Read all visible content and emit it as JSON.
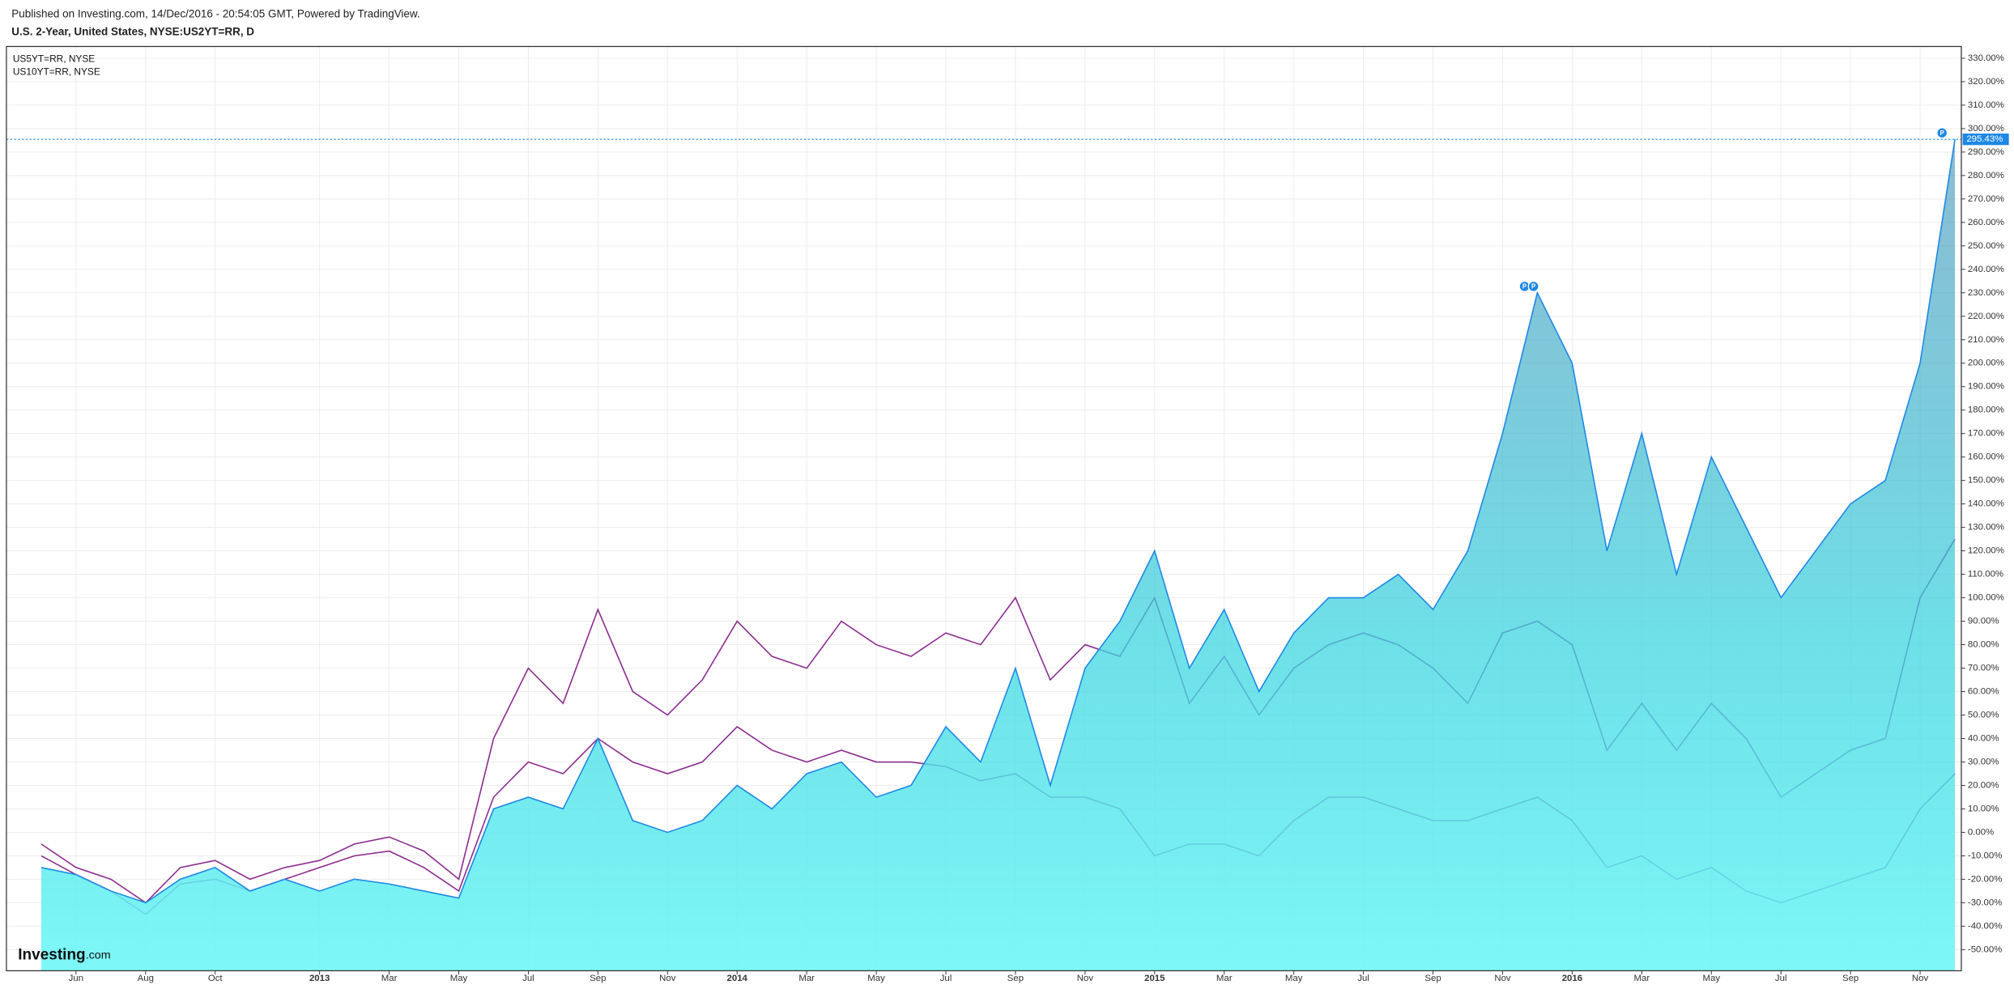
{
  "header": "Published on Investing.com, 14/Dec/2016 - 20:54:05 GMT, Powered by TradingView.",
  "chart_data": {
    "type": "area-compare",
    "title": "U.S. 2-Year, United States, NYSE:US2YT=RR, D",
    "x": [
      "2012-05",
      "2012-06",
      "2012-07",
      "2012-08",
      "2012-09",
      "2012-10",
      "2012-11",
      "2012-12",
      "2013-01",
      "2013-02",
      "2013-03",
      "2013-04",
      "2013-05",
      "2013-06",
      "2013-07",
      "2013-08",
      "2013-09",
      "2013-10",
      "2013-11",
      "2013-12",
      "2014-01",
      "2014-02",
      "2014-03",
      "2014-04",
      "2014-05",
      "2014-06",
      "2014-07",
      "2014-08",
      "2014-09",
      "2014-10",
      "2014-11",
      "2014-12",
      "2015-01",
      "2015-02",
      "2015-03",
      "2015-04",
      "2015-05",
      "2015-06",
      "2015-07",
      "2015-08",
      "2015-09",
      "2015-10",
      "2015-11",
      "2015-12",
      "2016-01",
      "2016-02",
      "2016-03",
      "2016-04",
      "2016-05",
      "2016-06",
      "2016-07",
      "2016-08",
      "2016-09",
      "2016-10",
      "2016-11",
      "2016-12"
    ],
    "series": [
      {
        "name": "U.S. 2-Year",
        "color": "#1e88e5",
        "values": [
          -15,
          -18,
          -25,
          -30,
          -20,
          -15,
          -25,
          -20,
          -25,
          -20,
          -22,
          -25,
          -28,
          10,
          15,
          10,
          40,
          5,
          0,
          5,
          20,
          10,
          25,
          30,
          15,
          20,
          45,
          30,
          70,
          20,
          70,
          90,
          120,
          70,
          95,
          60,
          85,
          100,
          100,
          110,
          95,
          120,
          170,
          230,
          200,
          120,
          170,
          110,
          160,
          130,
          100,
          120,
          140,
          150,
          200,
          295.43
        ]
      },
      {
        "name": "US5YT=RR, NYSE",
        "color": "#8b2c8f",
        "values": [
          -5,
          -15,
          -20,
          -30,
          -15,
          -12,
          -20,
          -15,
          -12,
          -5,
          -2,
          -8,
          -20,
          40,
          70,
          55,
          95,
          60,
          50,
          65,
          90,
          75,
          70,
          90,
          80,
          75,
          85,
          80,
          100,
          65,
          80,
          75,
          100,
          55,
          75,
          50,
          70,
          80,
          85,
          80,
          70,
          55,
          85,
          90,
          80,
          35,
          55,
          35,
          55,
          40,
          15,
          25,
          35,
          40,
          100,
          125
        ]
      },
      {
        "name": "US10YT=RR, NYSE",
        "color": "#8b2c8f",
        "values": [
          -10,
          -18,
          -25,
          -35,
          -22,
          -20,
          -25,
          -20,
          -15,
          -10,
          -8,
          -15,
          -25,
          15,
          30,
          25,
          40,
          30,
          25,
          30,
          45,
          35,
          30,
          35,
          30,
          30,
          28,
          22,
          25,
          15,
          15,
          10,
          -10,
          -5,
          -5,
          -10,
          5,
          15,
          15,
          10,
          5,
          5,
          10,
          15,
          5,
          -15,
          -10,
          -20,
          -15,
          -25,
          -30,
          -25,
          -20,
          -15,
          10,
          25
        ]
      }
    ],
    "price_label": "295.43%",
    "events": [
      {
        "x": "2015-12",
        "label": "P"
      },
      {
        "x": "2015-12",
        "label": "P"
      },
      {
        "x": "2016-12",
        "label": "P"
      }
    ],
    "xlim": [
      "2012-04",
      "2016-12"
    ],
    "xticks": [
      {
        "value": "2012-06",
        "label": "Jun"
      },
      {
        "value": "2012-08",
        "label": "Aug"
      },
      {
        "value": "2012-10",
        "label": "Oct"
      },
      {
        "value": "2013-01",
        "label": "2013"
      },
      {
        "value": "2013-03",
        "label": "Mar"
      },
      {
        "value": "2013-05",
        "label": "May"
      },
      {
        "value": "2013-07",
        "label": "Jul"
      },
      {
        "value": "2013-09",
        "label": "Sep"
      },
      {
        "value": "2013-11",
        "label": "Nov"
      },
      {
        "value": "2014-01",
        "label": "2014"
      },
      {
        "value": "2014-03",
        "label": "Mar"
      },
      {
        "value": "2014-05",
        "label": "May"
      },
      {
        "value": "2014-07",
        "label": "Jul"
      },
      {
        "value": "2014-09",
        "label": "Sep"
      },
      {
        "value": "2014-11",
        "label": "Nov"
      },
      {
        "value": "2015-01",
        "label": "2015"
      },
      {
        "value": "2015-03",
        "label": "Mar"
      },
      {
        "value": "2015-05",
        "label": "May"
      },
      {
        "value": "2015-07",
        "label": "Jul"
      },
      {
        "value": "2015-09",
        "label": "Sep"
      },
      {
        "value": "2015-11",
        "label": "Nov"
      },
      {
        "value": "2016-01",
        "label": "2016"
      },
      {
        "value": "2016-03",
        "label": "Mar"
      },
      {
        "value": "2016-05",
        "label": "May"
      },
      {
        "value": "2016-07",
        "label": "Jul"
      },
      {
        "value": "2016-09",
        "label": "Sep"
      },
      {
        "value": "2016-11",
        "label": "Nov"
      }
    ],
    "ylim": [
      -59,
      335
    ],
    "yticks": [
      {
        "value": -50,
        "label": "-50.00%"
      },
      {
        "value": -40,
        "label": "-40.00%"
      },
      {
        "value": -30,
        "label": "-30.00%"
      },
      {
        "value": -20,
        "label": "-20.00%"
      },
      {
        "value": -10,
        "label": "-10.00%"
      },
      {
        "value": 0,
        "label": "0.00%"
      },
      {
        "value": 10,
        "label": "10.00%"
      },
      {
        "value": 20,
        "label": "20.00%"
      },
      {
        "value": 30,
        "label": "30.00%"
      },
      {
        "value": 40,
        "label": "40.00%"
      },
      {
        "value": 50,
        "label": "50.00%"
      },
      {
        "value": 60,
        "label": "60.00%"
      },
      {
        "value": 70,
        "label": "70.00%"
      },
      {
        "value": 80,
        "label": "80.00%"
      },
      {
        "value": 90,
        "label": "90.00%"
      },
      {
        "value": 100,
        "label": "100.00%"
      },
      {
        "value": 110,
        "label": "110.00%"
      },
      {
        "value": 120,
        "label": "120.00%"
      },
      {
        "value": 130,
        "label": "130.00%"
      },
      {
        "value": 140,
        "label": "140.00%"
      },
      {
        "value": 150,
        "label": "150.00%"
      },
      {
        "value": 160,
        "label": "160.00%"
      },
      {
        "value": 170,
        "label": "170.00%"
      },
      {
        "value": 180,
        "label": "180.00%"
      },
      {
        "value": 190,
        "label": "190.00%"
      },
      {
        "value": 200,
        "label": "200.00%"
      },
      {
        "value": 210,
        "label": "210.00%"
      },
      {
        "value": 220,
        "label": "220.00%"
      },
      {
        "value": 230,
        "label": "230.00%"
      },
      {
        "value": 240,
        "label": "240.00%"
      },
      {
        "value": 250,
        "label": "250.00%"
      },
      {
        "value": 260,
        "label": "260.00%"
      },
      {
        "value": 270,
        "label": "270.00%"
      },
      {
        "value": 280,
        "label": "280.00%"
      },
      {
        "value": 290,
        "label": "290.00%"
      },
      {
        "value": 300,
        "label": "300.00%"
      },
      {
        "value": 310,
        "label": "310.00%"
      },
      {
        "value": 320,
        "label": "320.00%"
      },
      {
        "value": 330,
        "label": "330.00%"
      }
    ],
    "grid": true,
    "logo": {
      "name": "Investing",
      "suffix": ".com"
    }
  }
}
